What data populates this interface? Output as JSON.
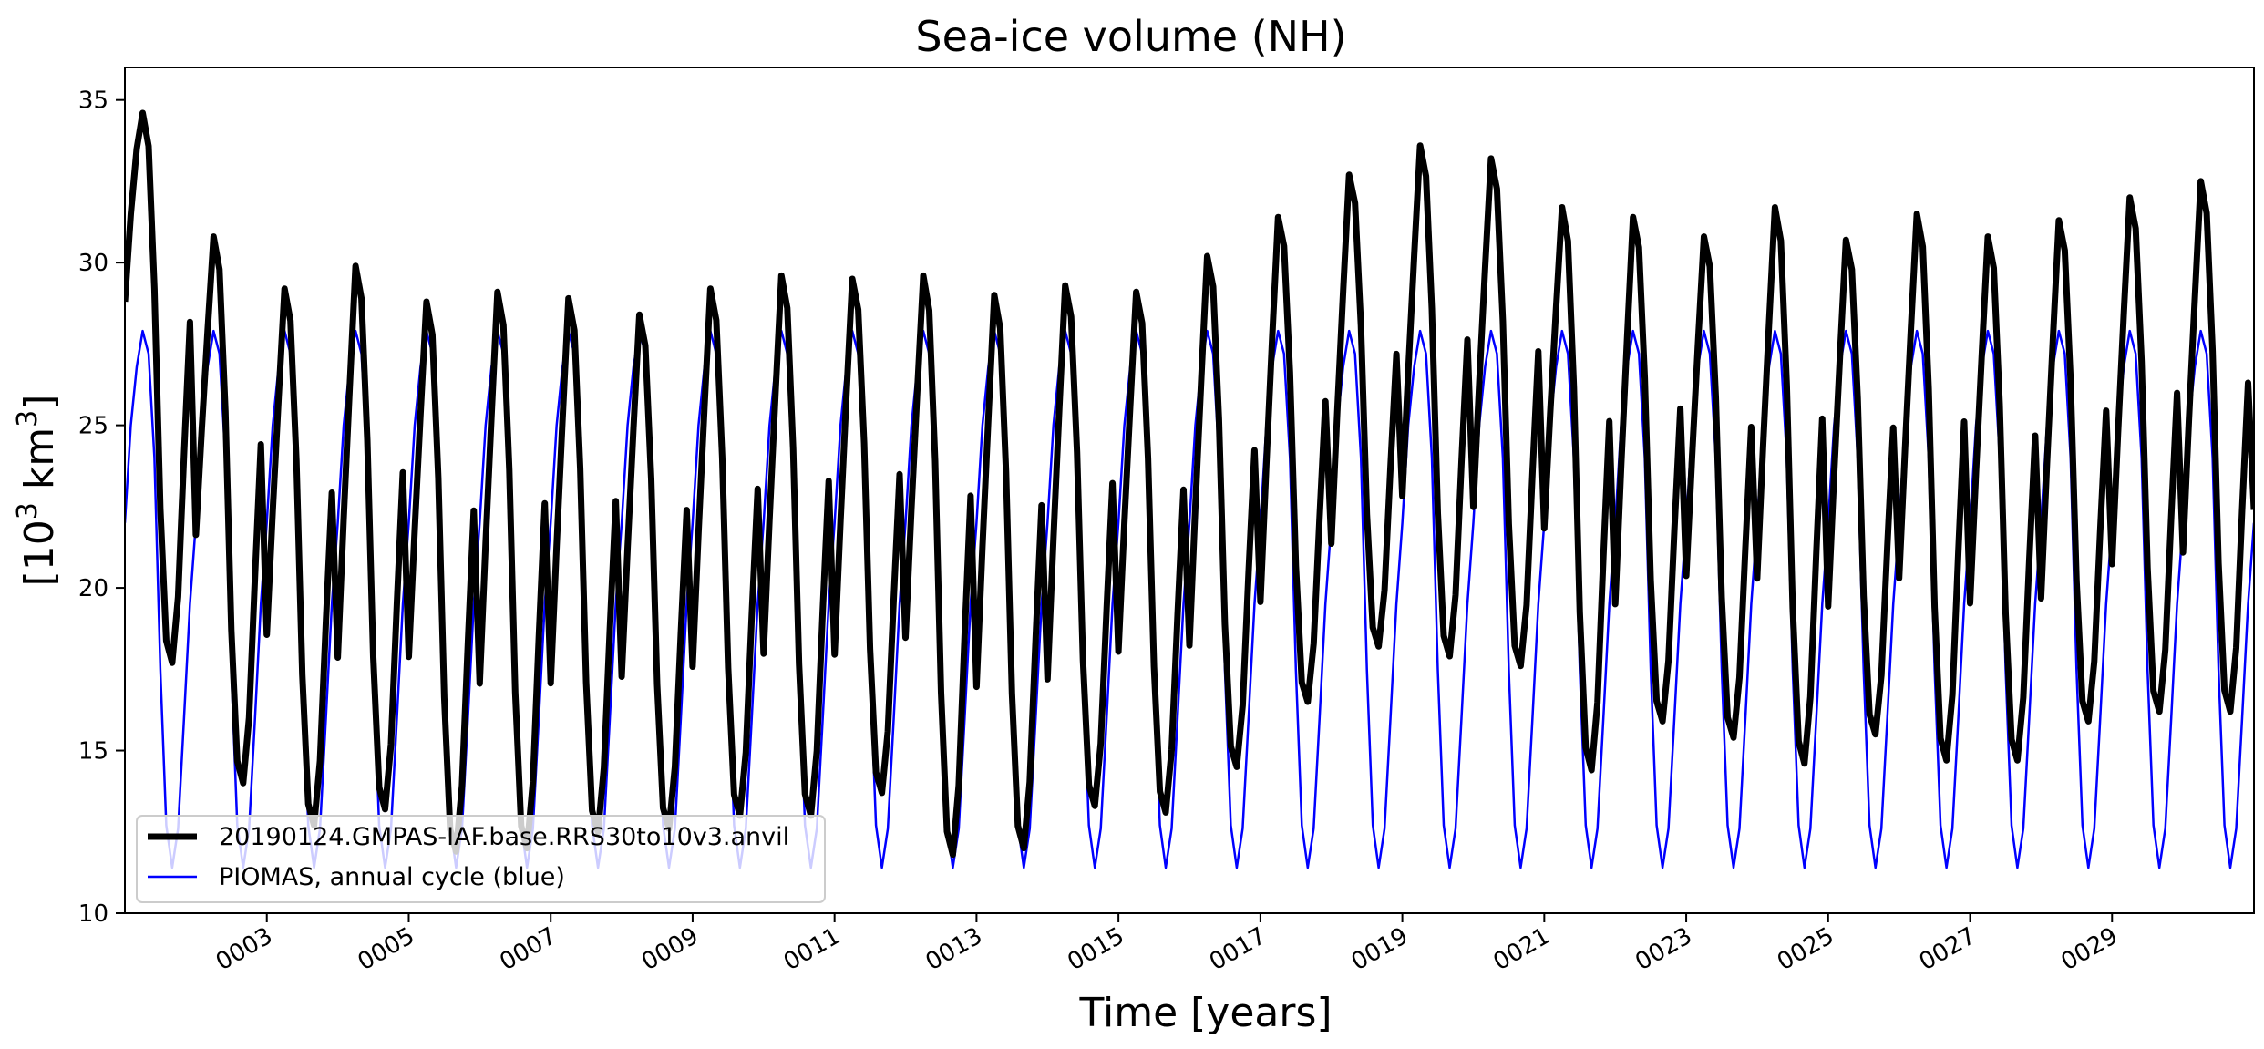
{
  "chart_data": {
    "type": "line",
    "title": "Sea-ice volume (NH)",
    "xlabel": "Time [years]",
    "ylabel_base": "[10",
    "ylabel_sup": "3",
    "ylabel_mid": " km",
    "ylabel_sup2": "3",
    "ylabel_end": "]",
    "xlim": [
      1.0,
      31.0
    ],
    "ylim": [
      10,
      36
    ],
    "yticks": [
      10,
      15,
      20,
      25,
      30,
      35
    ],
    "xtick_positions": [
      3,
      5,
      7,
      9,
      11,
      13,
      15,
      17,
      19,
      21,
      23,
      25,
      27,
      29
    ],
    "xtick_labels": [
      "0003",
      "0005",
      "0007",
      "0009",
      "0011",
      "0013",
      "0015",
      "0017",
      "0019",
      "0021",
      "0023",
      "0025",
      "0027",
      "0029"
    ],
    "legend_position": "lower-left",
    "series": [
      {
        "name": "20190124.GMPAS-IAF.base.RRS30to10v3.anvil",
        "color": "#000000",
        "annual_max": [
          34.6,
          30.8,
          29.2,
          29.9,
          28.8,
          29.1,
          28.9,
          28.4,
          29.2,
          29.6,
          29.5,
          29.6,
          29.0,
          29.3,
          29.1,
          30.2,
          31.4,
          32.7,
          33.6,
          33.2,
          31.7,
          31.4,
          30.8,
          31.7,
          30.7,
          31.5,
          30.8,
          31.3,
          32.0,
          32.5
        ],
        "annual_min": [
          17.7,
          14.0,
          12.7,
          13.2,
          11.9,
          12.0,
          12.5,
          12.6,
          13.0,
          13.0,
          13.7,
          11.8,
          12.0,
          13.3,
          13.1,
          14.5,
          16.5,
          18.2,
          17.9,
          17.6,
          14.4,
          15.9,
          15.4,
          14.6,
          15.5,
          14.7,
          14.7,
          15.9,
          16.2,
          16.2
        ]
      },
      {
        "name": "PIOMAS, annual cycle (blue)",
        "color": "#0000ff",
        "monthly_cycle": [
          22.0,
          25.0,
          26.8,
          27.9,
          27.2,
          24.0,
          17.5,
          12.7,
          11.4,
          12.6,
          16.0,
          19.5
        ]
      }
    ]
  }
}
